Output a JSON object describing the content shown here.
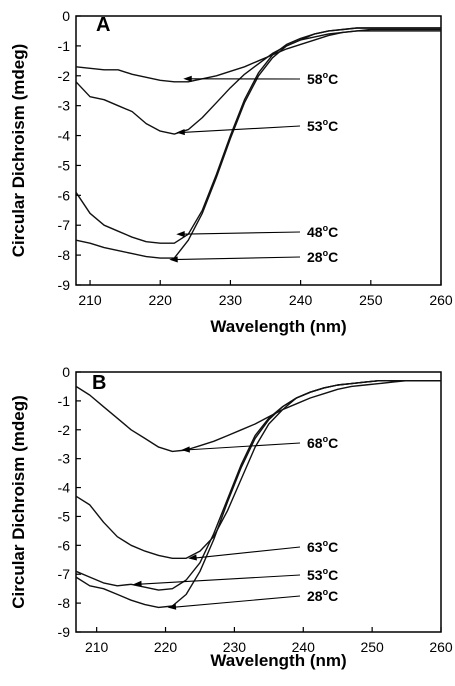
{
  "chart_data": [
    {
      "type": "line",
      "panel": "A",
      "xlabel": "Wavelength (nm)",
      "ylabel": "Circular Dichroism (mdeg)",
      "xlim": [
        208,
        260
      ],
      "ylim": [
        -9,
        0
      ],
      "xticks": [
        210,
        220,
        230,
        240,
        250,
        260
      ],
      "yticks": [
        0,
        -1,
        -2,
        -3,
        -4,
        -5,
        -6,
        -7,
        -8,
        -9
      ],
      "grid": false,
      "series": [
        {
          "name": "58°C",
          "x": [
            208,
            210,
            212,
            214,
            216,
            218,
            220,
            222,
            224,
            226,
            228,
            230,
            232,
            234,
            236,
            238,
            240,
            242,
            244,
            246,
            248,
            250,
            252,
            254,
            256,
            258,
            260
          ],
          "y": [
            -1.7,
            -1.75,
            -1.8,
            -1.8,
            -1.95,
            -2.05,
            -2.15,
            -2.2,
            -2.2,
            -2.1,
            -2.0,
            -1.85,
            -1.7,
            -1.5,
            -1.3,
            -1.1,
            -0.95,
            -0.8,
            -0.65,
            -0.55,
            -0.5,
            -0.45,
            -0.45,
            -0.45,
            -0.45,
            -0.45,
            -0.45
          ]
        },
        {
          "name": "53°C",
          "x": [
            208,
            210,
            212,
            214,
            216,
            218,
            220,
            222,
            224,
            226,
            228,
            230,
            232,
            234,
            236,
            238,
            240,
            242,
            244,
            246,
            248,
            250,
            252,
            254,
            256,
            258,
            260
          ],
          "y": [
            -2.2,
            -2.7,
            -2.8,
            -3.0,
            -3.2,
            -3.6,
            -3.85,
            -3.95,
            -3.8,
            -3.4,
            -2.9,
            -2.4,
            -1.95,
            -1.6,
            -1.25,
            -1.0,
            -0.8,
            -0.7,
            -0.6,
            -0.55,
            -0.5,
            -0.5,
            -0.5,
            -0.5,
            -0.5,
            -0.5,
            -0.5
          ]
        },
        {
          "name": "48°C",
          "x": [
            208,
            210,
            212,
            214,
            216,
            218,
            220,
            222,
            224,
            226,
            228,
            230,
            232,
            234,
            236,
            238,
            240,
            242,
            244,
            246,
            248,
            250,
            252,
            254,
            256,
            258,
            260
          ],
          "y": [
            -5.9,
            -6.6,
            -7.0,
            -7.2,
            -7.4,
            -7.55,
            -7.6,
            -7.6,
            -7.3,
            -6.5,
            -5.3,
            -4.0,
            -2.8,
            -1.9,
            -1.3,
            -0.95,
            -0.75,
            -0.6,
            -0.5,
            -0.45,
            -0.4,
            -0.4,
            -0.4,
            -0.4,
            -0.4,
            -0.4,
            -0.4
          ]
        },
        {
          "name": "28°C",
          "x": [
            208,
            210,
            212,
            214,
            216,
            218,
            220,
            222,
            224,
            226,
            228,
            230,
            232,
            234,
            236,
            238,
            240,
            242,
            244,
            246,
            248,
            250,
            252,
            254,
            256,
            258,
            260
          ],
          "y": [
            -7.5,
            -7.6,
            -7.75,
            -7.85,
            -7.95,
            -8.05,
            -8.1,
            -8.1,
            -7.5,
            -6.6,
            -5.4,
            -4.1,
            -2.9,
            -2.0,
            -1.4,
            -1.0,
            -0.8,
            -0.6,
            -0.5,
            -0.45,
            -0.4,
            -0.4,
            -0.4,
            -0.4,
            -0.4,
            -0.4,
            -0.4
          ]
        }
      ],
      "annotations": [
        {
          "text": "58°C",
          "label": "58",
          "unit": "C",
          "x": 223,
          "y": -2.1
        },
        {
          "text": "53°C",
          "label": "53",
          "unit": "C",
          "x": 222,
          "y": -3.9
        },
        {
          "text": "48°C",
          "label": "48",
          "unit": "C",
          "x": 222,
          "y": -7.3
        },
        {
          "text": "28°C",
          "label": "28",
          "unit": "C",
          "x": 221,
          "y": -8.15
        }
      ]
    },
    {
      "type": "line",
      "panel": "B",
      "xlabel": "Wavelength (nm)",
      "ylabel": "Circular Dichroism (mdeg)",
      "xlim": [
        207,
        260
      ],
      "ylim": [
        -9,
        0
      ],
      "xticks": [
        210,
        220,
        230,
        240,
        250,
        260
      ],
      "yticks": [
        0,
        -1,
        -2,
        -3,
        -4,
        -5,
        -6,
        -7,
        -8,
        -9
      ],
      "grid": false,
      "series": [
        {
          "name": "68°C",
          "x": [
            207,
            209,
            211,
            213,
            215,
            217,
            219,
            221,
            223,
            225,
            227,
            229,
            231,
            233,
            235,
            237,
            239,
            241,
            243,
            245,
            247,
            249,
            251,
            253,
            255,
            257,
            260
          ],
          "y": [
            -0.5,
            -0.8,
            -1.2,
            -1.6,
            -2.0,
            -2.3,
            -2.6,
            -2.75,
            -2.7,
            -2.55,
            -2.4,
            -2.2,
            -2.0,
            -1.8,
            -1.55,
            -1.3,
            -1.1,
            -0.9,
            -0.75,
            -0.6,
            -0.5,
            -0.45,
            -0.4,
            -0.35,
            -0.3,
            -0.3,
            -0.3
          ]
        },
        {
          "name": "63°C",
          "x": [
            207,
            209,
            211,
            213,
            215,
            217,
            219,
            221,
            223,
            225,
            227,
            229,
            231,
            233,
            235,
            237,
            239,
            241,
            243,
            245,
            247,
            249,
            251,
            253,
            255,
            257,
            260
          ],
          "y": [
            -4.3,
            -4.6,
            -5.2,
            -5.7,
            -6.0,
            -6.2,
            -6.35,
            -6.45,
            -6.45,
            -6.2,
            -5.7,
            -4.8,
            -3.7,
            -2.6,
            -1.8,
            -1.3,
            -0.9,
            -0.7,
            -0.55,
            -0.45,
            -0.4,
            -0.35,
            -0.3,
            -0.3,
            -0.3,
            -0.3,
            -0.3
          ]
        },
        {
          "name": "53°C",
          "x": [
            207,
            209,
            211,
            213,
            215,
            217,
            219,
            221,
            223,
            225,
            227,
            229,
            231,
            233,
            235,
            237,
            239,
            241,
            243,
            245,
            247,
            249,
            251,
            253,
            255,
            257,
            260
          ],
          "y": [
            -6.9,
            -7.1,
            -7.3,
            -7.4,
            -7.35,
            -7.45,
            -7.55,
            -7.5,
            -7.2,
            -6.6,
            -5.6,
            -4.4,
            -3.2,
            -2.2,
            -1.6,
            -1.2,
            -0.9,
            -0.7,
            -0.55,
            -0.45,
            -0.4,
            -0.35,
            -0.3,
            -0.3,
            -0.3,
            -0.3,
            -0.3
          ]
        },
        {
          "name": "28°C",
          "x": [
            207,
            209,
            211,
            213,
            215,
            217,
            219,
            221,
            223,
            225,
            227,
            229,
            231,
            233,
            235,
            237,
            239,
            241,
            243,
            245,
            247,
            249,
            251,
            253,
            255,
            257,
            260
          ],
          "y": [
            -7.1,
            -7.4,
            -7.5,
            -7.7,
            -7.9,
            -8.05,
            -8.15,
            -8.1,
            -7.7,
            -6.9,
            -5.8,
            -4.5,
            -3.3,
            -2.3,
            -1.65,
            -1.2,
            -0.9,
            -0.7,
            -0.55,
            -0.45,
            -0.4,
            -0.35,
            -0.3,
            -0.3,
            -0.3,
            -0.3,
            -0.3
          ]
        }
      ],
      "annotations": [
        {
          "text": "68°C",
          "label": "68",
          "unit": "C",
          "x": 222,
          "y": -2.7
        },
        {
          "text": "63°C",
          "label": "63",
          "unit": "C",
          "x": 223,
          "y": -6.45
        },
        {
          "text": "53°C",
          "label": "53",
          "unit": "C",
          "x": 215,
          "y": -7.35
        },
        {
          "text": "28°C",
          "label": "28",
          "unit": "C",
          "x": 220,
          "y": -8.15
        }
      ]
    }
  ]
}
